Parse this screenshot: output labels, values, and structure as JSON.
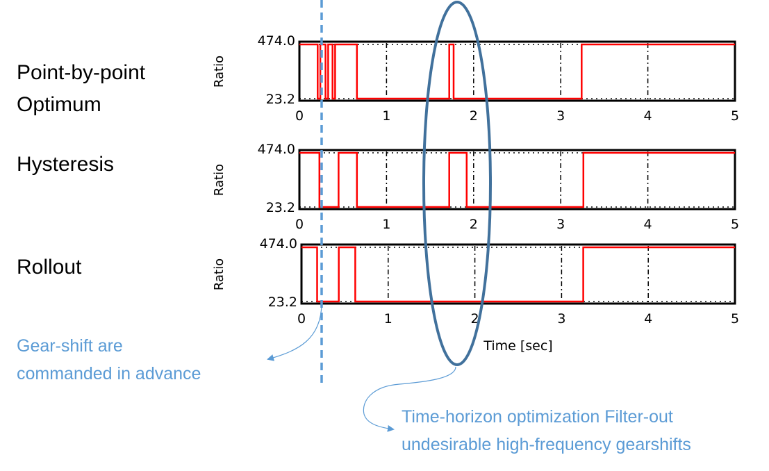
{
  "row_labels": [
    "Point-by-point",
    "Optimum",
    "Hysteresis",
    "Rollout"
  ],
  "notes": {
    "gear_shift_line1": "Gear-shift are",
    "gear_shift_line2": "commanded in advance",
    "horizon_line1": "Time-horizon optimization Filter-out",
    "horizon_line2": "undesirable high-frequency gearshifts"
  },
  "colors": {
    "signal": "#ff0000",
    "annotation": "#5b9bd5",
    "ellipse": "#41719c"
  },
  "chart_data": [
    {
      "type": "line",
      "name": "point-by-point-optimum",
      "xlabel": "",
      "ylabel": "Ratio",
      "xlim": [
        0,
        5
      ],
      "ylim": [
        23.2,
        474.0
      ],
      "xticks": [
        "0",
        "1",
        "2",
        "3",
        "4",
        "5"
      ],
      "yticks": [
        "474.0",
        "23.2"
      ],
      "x": [
        0,
        0.21,
        0.21,
        0.24,
        0.24,
        0.3,
        0.3,
        0.33,
        0.33,
        0.38,
        0.38,
        0.41,
        0.41,
        0.66,
        0.66,
        1.72,
        1.72,
        1.77,
        1.77,
        3.24,
        3.24,
        5
      ],
      "y": [
        474.0,
        474.0,
        23.2,
        23.2,
        474.0,
        474.0,
        23.2,
        23.2,
        474.0,
        474.0,
        23.2,
        23.2,
        474.0,
        474.0,
        23.2,
        23.2,
        474.0,
        474.0,
        23.2,
        23.2,
        474.0,
        474.0
      ]
    },
    {
      "type": "line",
      "name": "hysteresis",
      "xlabel": "",
      "ylabel": "Ratio",
      "xlim": [
        0,
        5
      ],
      "ylim": [
        23.2,
        474.0
      ],
      "xticks": [
        "0",
        "1",
        "2",
        "3",
        "4",
        "5"
      ],
      "yticks": [
        "474.0",
        "23.2"
      ],
      "x": [
        0,
        0.23,
        0.23,
        0.45,
        0.45,
        0.66,
        0.66,
        1.72,
        1.72,
        1.92,
        1.92,
        3.26,
        3.26,
        5
      ],
      "y": [
        474.0,
        474.0,
        23.2,
        23.2,
        474.0,
        474.0,
        23.2,
        23.2,
        474.0,
        474.0,
        23.2,
        23.2,
        474.0,
        474.0
      ]
    },
    {
      "type": "line",
      "name": "rollout",
      "xlabel": "Time [sec]",
      "ylabel": "Ratio",
      "xlim": [
        0,
        5
      ],
      "ylim": [
        23.2,
        474.0
      ],
      "xticks": [
        "0",
        "1",
        "2",
        "3",
        "4",
        "5"
      ],
      "yticks": [
        "474.0",
        "23.2"
      ],
      "x": [
        0,
        0.18,
        0.18,
        0.43,
        0.43,
        0.62,
        0.62,
        3.25,
        3.25,
        5
      ],
      "y": [
        474.0,
        474.0,
        23.2,
        23.2,
        474.0,
        474.0,
        23.2,
        23.2,
        474.0,
        474.0
      ]
    }
  ]
}
